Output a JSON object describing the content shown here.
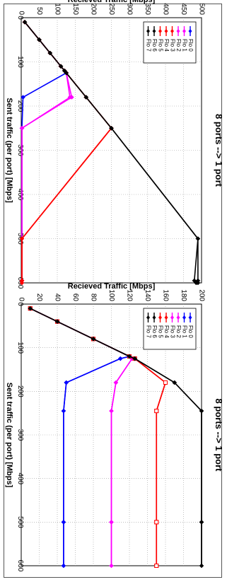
{
  "chart_data": [
    {
      "type": "line",
      "title": "8 ports --> 1 port",
      "xlabel": "Sent traffic (per port) [Mbps]",
      "ylabel": "Recieved Traffic [Mbps]",
      "xlim": [
        0,
        600
      ],
      "ylim": [
        0,
        500
      ],
      "xticks": [
        "0",
        "100",
        "200",
        "300",
        "400",
        "500",
        "600"
      ],
      "yticks": [
        "0",
        "50",
        "100",
        "150",
        "200",
        "250",
        "300",
        "350",
        "400",
        "450",
        "500"
      ],
      "grid": true,
      "legend_position": "top-right",
      "series": [
        {
          "name": "Flo 0",
          "color": "#0000ff",
          "marker": "diamond",
          "x": [
            10,
            50,
            80,
            110,
            120,
            125,
            180,
            250,
            500,
            595,
            600
          ],
          "y": [
            10,
            50,
            80,
            110,
            120,
            125,
            5,
            2,
            2,
            2,
            2
          ]
        },
        {
          "name": "Flo 1",
          "color": "#ff00ff",
          "marker": "diamond",
          "x": [
            10,
            50,
            80,
            110,
            120,
            125,
            180,
            250,
            500,
            595,
            600
          ],
          "y": [
            10,
            50,
            80,
            110,
            120,
            125,
            140,
            2,
            2,
            2,
            2
          ]
        },
        {
          "name": "Flo 2",
          "color": "#ff00ff",
          "marker": "diamond",
          "x": [
            10,
            50,
            80,
            110,
            120,
            125,
            180,
            250,
            500,
            595,
            600
          ],
          "y": [
            10,
            50,
            80,
            110,
            120,
            125,
            135,
            2,
            2,
            2,
            2
          ]
        },
        {
          "name": "Flo 3",
          "color": "#ff0000",
          "marker": "diamond",
          "x": [
            10,
            50,
            80,
            110,
            120,
            125,
            180,
            250,
            500,
            595,
            600
          ],
          "y": [
            10,
            50,
            80,
            110,
            120,
            125,
            180,
            250,
            2,
            2,
            2
          ]
        },
        {
          "name": "Flo 4",
          "color": "#ff0000",
          "marker": "diamond",
          "x": [
            10,
            50,
            80,
            110,
            120,
            125,
            180,
            250,
            500,
            595,
            600
          ],
          "y": [
            10,
            50,
            80,
            110,
            120,
            125,
            180,
            250,
            2,
            2,
            2
          ]
        },
        {
          "name": "Flo 5",
          "color": "#ff0000",
          "marker": "diamond",
          "x": [
            10,
            50,
            80,
            110,
            120,
            125,
            180,
            250,
            500,
            595,
            600
          ],
          "y": [
            10,
            50,
            80,
            110,
            120,
            125,
            180,
            250,
            2,
            2,
            2
          ]
        },
        {
          "name": "Flo 6",
          "color": "#000000",
          "marker": "diamond",
          "x": [
            10,
            50,
            80,
            110,
            120,
            125,
            180,
            250,
            500,
            595,
            600
          ],
          "y": [
            10,
            50,
            80,
            110,
            120,
            125,
            180,
            250,
            490,
            490,
            490
          ]
        },
        {
          "name": "Flo 7",
          "color": "#000000",
          "marker": "diamond",
          "x": [
            10,
            50,
            80,
            110,
            120,
            125,
            180,
            250,
            500,
            595,
            600
          ],
          "y": [
            10,
            50,
            80,
            110,
            120,
            125,
            180,
            250,
            490,
            480,
            485
          ]
        }
      ]
    },
    {
      "type": "line",
      "title": "8 ports --> 1 port",
      "xlabel": "Sent traffic (per port) [Mbps]",
      "ylabel": "Recieved Traffic [Mbps]",
      "xlim": [
        0,
        600
      ],
      "ylim": [
        0,
        200
      ],
      "xticks": [
        "0",
        "100",
        "200",
        "300",
        "400",
        "500",
        "600"
      ],
      "yticks": [
        "0",
        "20",
        "40",
        "60",
        "80",
        "100",
        "120",
        "140",
        "160",
        "180",
        "200"
      ],
      "grid": true,
      "legend_position": "top-right",
      "series": [
        {
          "name": "Flo 0",
          "color": "#0000ff",
          "marker": "diamond",
          "x": [
            10,
            40,
            80,
            120,
            125,
            180,
            245,
            500,
            600
          ],
          "y": [
            10,
            40,
            80,
            120,
            110,
            50,
            47,
            47,
            47
          ]
        },
        {
          "name": "Flo 1",
          "color": "#0000ff",
          "marker": "diamond",
          "x": [
            10,
            40,
            80,
            120,
            125,
            180,
            245,
            500,
            600
          ],
          "y": [
            10,
            40,
            80,
            120,
            110,
            50,
            47,
            47,
            47
          ]
        },
        {
          "name": "Flo 2",
          "color": "#ff00ff",
          "marker": "diamond",
          "x": [
            10,
            40,
            80,
            120,
            125,
            180,
            245,
            500,
            600
          ],
          "y": [
            10,
            40,
            80,
            120,
            123,
            105,
            100,
            100,
            100
          ]
        },
        {
          "name": "Flo 3",
          "color": "#ff00ff",
          "marker": "diamond",
          "x": [
            10,
            40,
            80,
            120,
            125,
            180,
            245,
            500,
            600
          ],
          "y": [
            10,
            40,
            80,
            120,
            123,
            105,
            100,
            100,
            100
          ]
        },
        {
          "name": "Flo 4",
          "color": "#ff0000",
          "marker": "square",
          "x": [
            10,
            40,
            80,
            120,
            125,
            180,
            245,
            500,
            600
          ],
          "y": [
            10,
            40,
            80,
            120,
            126,
            160,
            150,
            150,
            150
          ]
        },
        {
          "name": "Flo 5",
          "color": "#ff0000",
          "marker": "square",
          "x": [
            10,
            40,
            80,
            120,
            125,
            180,
            245,
            500,
            600
          ],
          "y": [
            10,
            40,
            80,
            120,
            126,
            160,
            150,
            150,
            150
          ]
        },
        {
          "name": "Flo 6",
          "color": "#000000",
          "marker": "diamond",
          "x": [
            10,
            40,
            80,
            120,
            125,
            180,
            245,
            500,
            600
          ],
          "y": [
            10,
            40,
            80,
            120,
            126,
            170,
            200,
            200,
            200
          ]
        },
        {
          "name": "Flo 7",
          "color": "#000000",
          "marker": "diamond",
          "x": [
            10,
            40,
            80,
            120,
            125,
            180,
            245,
            500,
            600
          ],
          "y": [
            10,
            40,
            80,
            120,
            126,
            170,
            200,
            200,
            200
          ]
        }
      ]
    }
  ]
}
